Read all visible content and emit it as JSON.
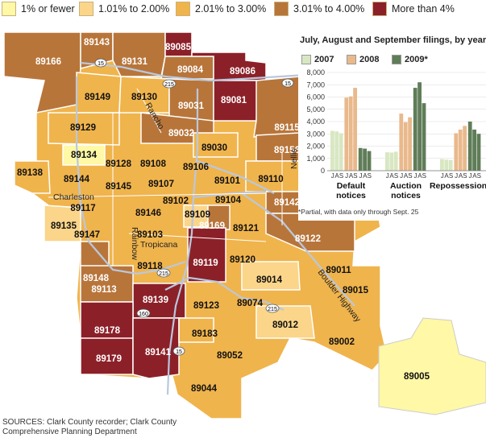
{
  "legend": [
    {
      "label": "1% or fewer",
      "color": "#fff8a6"
    },
    {
      "label": "1.01% to 2.00%",
      "color": "#fbd58a"
    },
    {
      "label": "2.01% to 3.00%",
      "color": "#f0b44c"
    },
    {
      "label": "3.01% to 4.00%",
      "color": "#b8753a"
    },
    {
      "label": "More than 4%",
      "color": "#8c2028"
    }
  ],
  "zips": [
    {
      "code": "89143",
      "c": 4
    },
    {
      "code": "89166",
      "c": 4
    },
    {
      "code": "89131",
      "c": 4
    },
    {
      "code": "89085",
      "c": 5
    },
    {
      "code": "89084",
      "c": 4
    },
    {
      "code": "89086",
      "c": 5
    },
    {
      "code": "89149",
      "c": 3
    },
    {
      "code": "89130",
      "c": 3
    },
    {
      "code": "89031",
      "c": 4
    },
    {
      "code": "89081",
      "c": 5
    },
    {
      "code": "89129",
      "c": 3
    },
    {
      "code": "89032",
      "c": 4
    },
    {
      "code": "89115",
      "c": 4
    },
    {
      "code": "89134",
      "c": 1
    },
    {
      "code": "89128",
      "c": 3
    },
    {
      "code": "89108",
      "c": 3
    },
    {
      "code": "89106",
      "c": 3
    },
    {
      "code": "89030",
      "c": 3
    },
    {
      "code": "89156",
      "c": 4
    },
    {
      "code": "89138",
      "c": 3
    },
    {
      "code": "89144",
      "c": 3
    },
    {
      "code": "89145",
      "c": 3
    },
    {
      "code": "89107",
      "c": 3
    },
    {
      "code": "89101",
      "c": 3
    },
    {
      "code": "89110",
      "c": 3
    },
    {
      "code": "89117",
      "c": 3
    },
    {
      "code": "89146",
      "c": 3
    },
    {
      "code": "89102",
      "c": 3
    },
    {
      "code": "89104",
      "c": 3
    },
    {
      "code": "89142",
      "c": 4
    },
    {
      "code": "89135",
      "c": 2
    },
    {
      "code": "89147",
      "c": 3
    },
    {
      "code": "89103",
      "c": 3
    },
    {
      "code": "89109",
      "c": 2
    },
    {
      "code": "89169",
      "c": 4
    },
    {
      "code": "89121",
      "c": 3
    },
    {
      "code": "89122",
      "c": 4
    },
    {
      "code": "89118",
      "c": 3
    },
    {
      "code": "89119",
      "c": 5
    },
    {
      "code": "89120",
      "c": 3
    },
    {
      "code": "89011",
      "c": 3
    },
    {
      "code": "89148",
      "c": 4
    },
    {
      "code": "89014",
      "c": 2
    },
    {
      "code": "89015",
      "c": 3
    },
    {
      "code": "89113",
      "c": 4
    },
    {
      "code": "89139",
      "c": 5
    },
    {
      "code": "89123",
      "c": 3
    },
    {
      "code": "89074",
      "c": 3
    },
    {
      "code": "89012",
      "c": 2
    },
    {
      "code": "89178",
      "c": 5
    },
    {
      "code": "89183",
      "c": 3
    },
    {
      "code": "89052",
      "c": 3
    },
    {
      "code": "89002",
      "c": 3
    },
    {
      "code": "89179",
      "c": 5
    },
    {
      "code": "89141",
      "c": 5
    },
    {
      "code": "89005",
      "c": 1
    },
    {
      "code": "89044",
      "c": 3
    }
  ],
  "roads": {
    "rancho": "Rancho",
    "charleston": "Charleston",
    "rainbow": "Rainbow",
    "tropicana": "Tropicana",
    "nellis": "Nellis",
    "boulder": "Boulder Highway",
    "i15a": "15",
    "i15b": "15",
    "i15c": "15",
    "i215a": "215",
    "i215b": "215",
    "i215c": "215",
    "i160": "160"
  },
  "chart_data": {
    "type": "bar",
    "title": "July, August and September filings, by year",
    "series": [
      {
        "name": "2007",
        "color": "#d8e7c2"
      },
      {
        "name": "2008",
        "color": "#e9b98c"
      },
      {
        "name": "2009*",
        "color": "#5f7d58"
      }
    ],
    "month_labels": [
      "J",
      "A",
      "S"
    ],
    "ylim": [
      0,
      8000
    ],
    "yticks": [
      "0",
      "1,000",
      "2,000",
      "3,000",
      "4,000",
      "5,000",
      "6,000",
      "7,000",
      "8,000"
    ],
    "groups": [
      {
        "name": "Default notices",
        "line1": "Default",
        "line2": "notices",
        "values": [
          [
            3250,
            3200,
            3050
          ],
          [
            5950,
            6050,
            6750
          ],
          [
            1850,
            1800,
            1600
          ]
        ]
      },
      {
        "name": "Auction notices",
        "line1": "Auction",
        "line2": "notices",
        "values": [
          [
            1500,
            1480,
            1550
          ],
          [
            4650,
            3950,
            4350
          ],
          [
            6750,
            7200,
            5500
          ]
        ]
      },
      {
        "name": "Repossessions",
        "line1": "Repossessions",
        "line2": "",
        "values": [
          [
            950,
            900,
            870
          ],
          [
            3050,
            3350,
            3650
          ],
          [
            4000,
            3350,
            3000
          ]
        ]
      }
    ],
    "footnote": "*Partial, with data only through Sept. 25"
  },
  "sources": "SOURCES: Clark County recorder; Clark County Comprehensive Planning Department",
  "sources_line1": "SOURCES: Clark County recorder; Clark County",
  "sources_line2": "Comprehensive Planning Department"
}
